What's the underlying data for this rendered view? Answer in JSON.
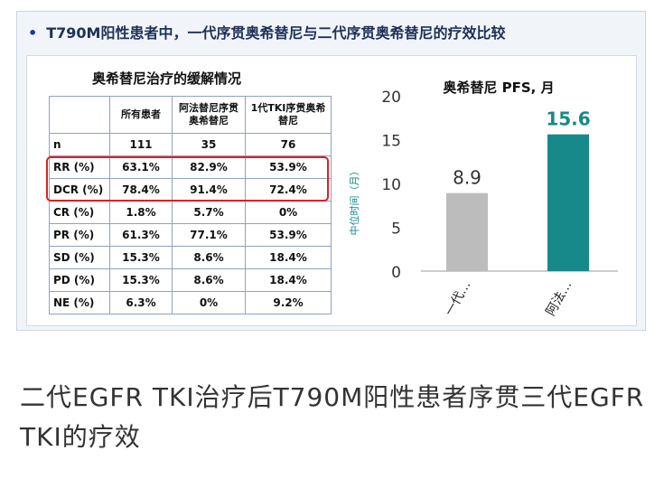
{
  "slide": {
    "bullet": "•",
    "title": "T790M阳性患者中，一代序贯奥希替尼与二代序贯奥希替尼的疗效比较"
  },
  "table": {
    "title": "奥希替尼治疗的缓解情况",
    "headers": [
      "",
      "所有患者",
      "阿法替尼序贯奥希替尼",
      "1代TKI序贯奥希替尼"
    ],
    "rows": [
      [
        "n",
        "111",
        "35",
        "76"
      ],
      [
        "RR (%)",
        "63.1%",
        "82.9%",
        "53.9%"
      ],
      [
        "DCR (%)",
        "78.4%",
        "91.4%",
        "72.4%"
      ],
      [
        "CR (%)",
        "1.8%",
        "5.7%",
        "0%"
      ],
      [
        "PR (%)",
        "61.3%",
        "77.1%",
        "53.9%"
      ],
      [
        "SD (%)",
        "15.3%",
        "8.6%",
        "18.4%"
      ],
      [
        "PD (%)",
        "15.3%",
        "8.6%",
        "18.4%"
      ],
      [
        "NE (%)",
        "6.3%",
        "0%",
        "9.2%"
      ]
    ],
    "highlight_color": "#e0201f"
  },
  "chart_data": {
    "type": "bar",
    "title": "奥希替尼 PFS, 月",
    "ylabel": "中位时间（月）",
    "ylim": [
      0,
      20
    ],
    "yticks": [
      0,
      5,
      10,
      15,
      20
    ],
    "categories": [
      "一代…",
      "阿法…"
    ],
    "values": [
      8.9,
      15.6
    ],
    "value_labels": [
      "8.9",
      "15.6"
    ],
    "colors": [
      "#bcbcbc",
      "#17898a"
    ],
    "value_label_colors": [
      "#333333",
      "#17898a"
    ],
    "grid": false,
    "legend": "none"
  },
  "caption": "二代EGFR TKI治疗后T790M阳性患者序贯三代EGFR TKI的疗效"
}
